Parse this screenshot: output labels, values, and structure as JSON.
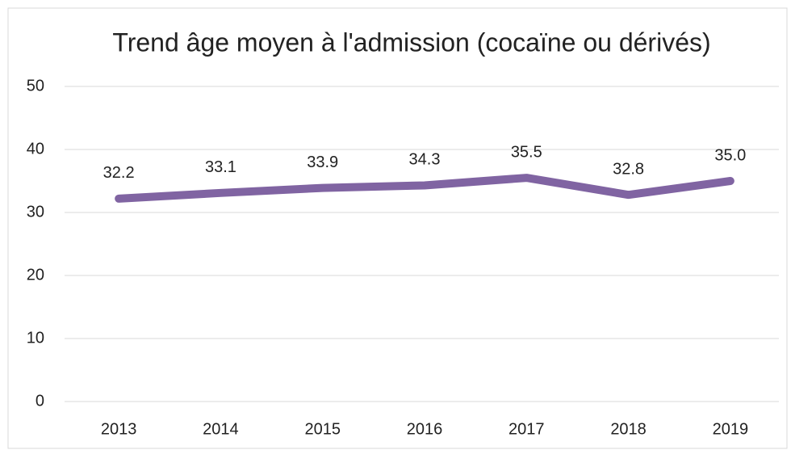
{
  "chart_data": {
    "type": "line",
    "title": "Trend âge moyen à l'admission (cocaïne ou dérivés)",
    "categories": [
      "2013",
      "2014",
      "2015",
      "2016",
      "2017",
      "2018",
      "2019"
    ],
    "values": [
      32.2,
      33.1,
      33.9,
      34.3,
      35.5,
      32.8,
      35.0
    ],
    "value_labels": [
      "32.2",
      "33.1",
      "33.9",
      "34.3",
      "35.5",
      "32.8",
      "35.0"
    ],
    "color": "#8064a2",
    "ylim": [
      0,
      50
    ],
    "yticks": [
      0,
      10,
      20,
      30,
      40,
      50
    ],
    "grid": true
  }
}
